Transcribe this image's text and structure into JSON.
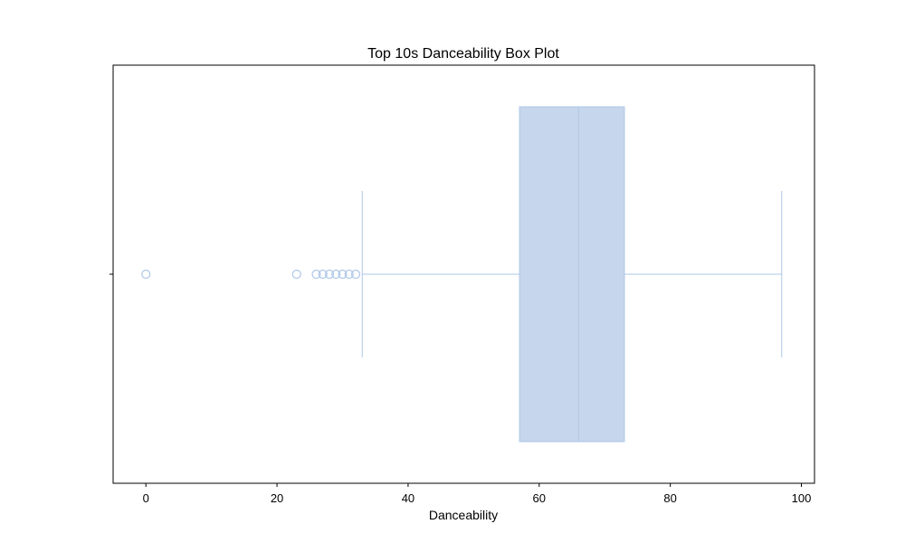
{
  "chart_data": {
    "type": "boxplot",
    "title": "Top 10s Danceability Box Plot",
    "xlabel": "Danceability",
    "ylabel": "",
    "orientation": "horizontal",
    "xlim": [
      -5,
      102
    ],
    "xticks": [
      0,
      20,
      40,
      60,
      80,
      100
    ],
    "grid": false,
    "box": {
      "whisker_low": 33,
      "q1": 57,
      "median": 66,
      "q3": 73,
      "whisker_high": 97
    },
    "outliers": [
      0,
      23,
      26,
      27,
      28,
      29,
      30,
      31,
      32
    ],
    "colors": {
      "box_fill": "#c6d6ec",
      "box_edge": "#aec7e8",
      "whisker": "#aec7e8",
      "outlier": "#aec7e8",
      "axes": "#000000"
    }
  }
}
